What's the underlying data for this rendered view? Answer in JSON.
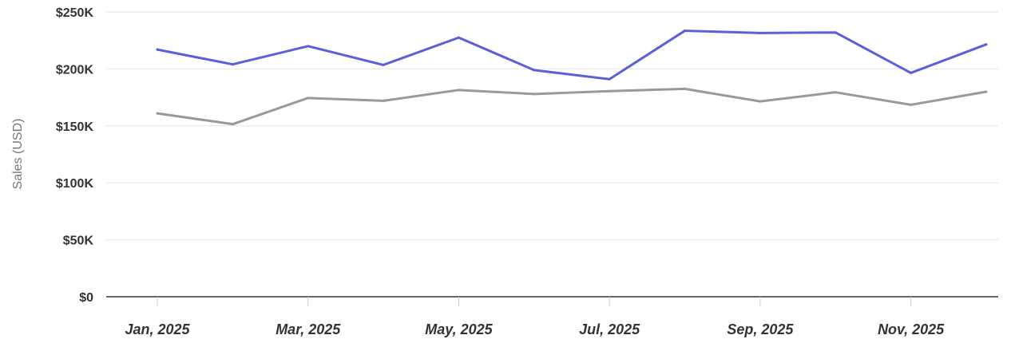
{
  "chart_data": {
    "type": "line",
    "ylabel": "Sales (USD)",
    "xlabel": "",
    "ylim": [
      0,
      250000
    ],
    "y_ticks": [
      {
        "value": 0,
        "label": "$0"
      },
      {
        "value": 50000,
        "label": "$50K"
      },
      {
        "value": 100000,
        "label": "$100K"
      },
      {
        "value": 150000,
        "label": "$150K"
      },
      {
        "value": 200000,
        "label": "$200K"
      },
      {
        "value": 250000,
        "label": "$250K"
      }
    ],
    "categories": [
      "2025-01",
      "2025-02",
      "2025-03",
      "2025-04",
      "2025-05",
      "2025-06",
      "2025-07",
      "2025-08",
      "2025-09",
      "2025-10",
      "2025-11",
      "2025-12"
    ],
    "x_tick_labels": [
      {
        "category": "2025-01",
        "label": "Jan, 2025"
      },
      {
        "category": "2025-03",
        "label": "Mar, 2025"
      },
      {
        "category": "2025-05",
        "label": "May, 2025"
      },
      {
        "category": "2025-07",
        "label": "Jul, 2025"
      },
      {
        "category": "2025-09",
        "label": "Sep, 2025"
      },
      {
        "category": "2025-11",
        "label": "Nov, 2025"
      }
    ],
    "series": [
      {
        "color": "#5b5fd8",
        "values": [
          217000,
          204000,
          220000,
          203500,
          227500,
          199000,
          191000,
          233500,
          231500,
          232000,
          196500,
          221500
        ]
      },
      {
        "color": "#999999",
        "values": [
          161000,
          151500,
          174500,
          172000,
          181500,
          178000,
          180500,
          182500,
          171500,
          179500,
          168500,
          180000
        ]
      }
    ],
    "grid": true,
    "legend": "none"
  }
}
